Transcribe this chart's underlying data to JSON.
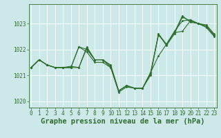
{
  "xlabel": "Graphe pression niveau de la mer (hPa)",
  "bg_color": "#cce8e8",
  "line_color": "#2d6e2d",
  "grid_color": "#ffffff",
  "xlim": [
    -0.3,
    23.3
  ],
  "ylim": [
    1019.75,
    1023.75
  ],
  "yticks": [
    1020,
    1021,
    1022,
    1023
  ],
  "xticks": [
    0,
    1,
    2,
    3,
    4,
    5,
    6,
    7,
    8,
    9,
    10,
    11,
    12,
    13,
    14,
    15,
    16,
    17,
    18,
    19,
    20,
    21,
    22,
    23
  ],
  "series": [
    [
      1021.3,
      1021.6,
      1021.4,
      1021.3,
      1021.3,
      1021.3,
      1021.3,
      1022.1,
      1021.6,
      1021.6,
      1021.3,
      1020.4,
      1020.6,
      1020.5,
      1020.5,
      1021.1,
      1021.75,
      1022.2,
      1022.7,
      1023.1,
      1023.15,
      1023.0,
      1022.95,
      1022.6
    ],
    [
      1021.3,
      1021.6,
      1021.4,
      1021.3,
      1021.3,
      1021.3,
      1022.1,
      1022.0,
      1021.6,
      1021.6,
      1021.4,
      1020.4,
      1020.6,
      1020.5,
      1020.5,
      1021.1,
      1022.55,
      1022.2,
      1022.65,
      1022.7,
      1023.1,
      1023.0,
      1022.9,
      1022.55
    ],
    [
      1021.3,
      1021.6,
      1021.4,
      1021.3,
      1021.3,
      1021.35,
      1021.3,
      1022.05,
      1021.6,
      1021.6,
      1021.35,
      1020.4,
      1020.6,
      1020.5,
      1020.5,
      1021.05,
      1022.6,
      1022.2,
      1022.65,
      1023.3,
      1023.05,
      1023.0,
      1022.85,
      1022.5
    ],
    [
      1021.3,
      1021.6,
      1021.4,
      1021.3,
      1021.3,
      1021.3,
      1022.1,
      1021.9,
      1021.5,
      1021.5,
      1021.3,
      1020.35,
      1020.55,
      1020.5,
      1020.5,
      1021.0,
      1022.6,
      1022.15,
      1022.6,
      1023.25,
      1023.1,
      1023.0,
      1022.9,
      1022.55
    ]
  ],
  "xlabel_fontsize": 7.5,
  "tick_fontsize": 5.5,
  "marker_size": 1.8,
  "line_width": 0.8
}
